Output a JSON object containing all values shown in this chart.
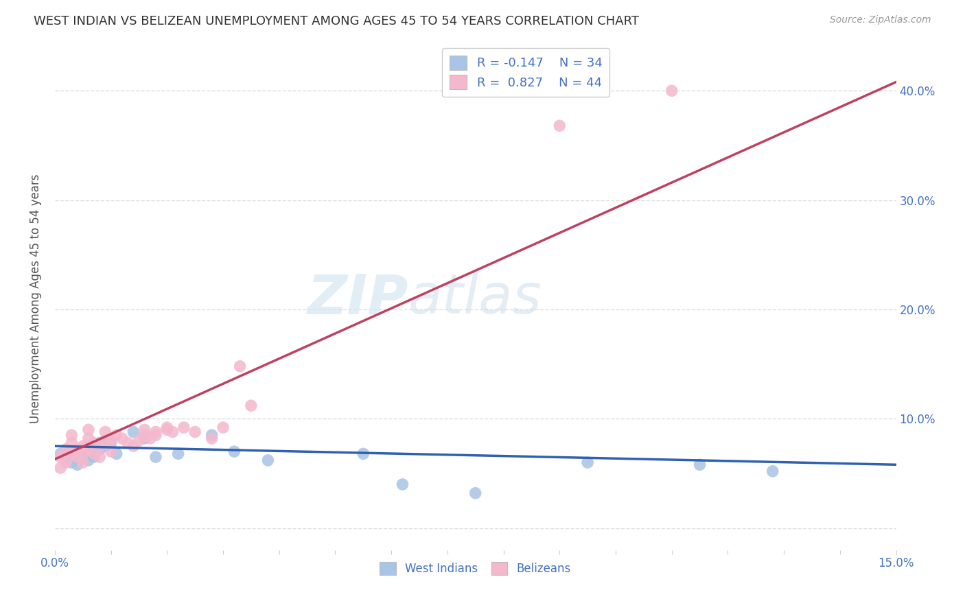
{
  "title": "WEST INDIAN VS BELIZEAN UNEMPLOYMENT AMONG AGES 45 TO 54 YEARS CORRELATION CHART",
  "source": "Source: ZipAtlas.com",
  "ylabel": "Unemployment Among Ages 45 to 54 years",
  "xmin": 0.0,
  "xmax": 0.15,
  "ymin": -0.02,
  "ymax": 0.44,
  "ytick_values": [
    0.0,
    0.1,
    0.2,
    0.3,
    0.4
  ],
  "grid_color": "#dddddd",
  "watermark_zip": "ZIP",
  "watermark_atlas": "atlas",
  "west_indian_color": "#a8c4e6",
  "belizean_color": "#f4b8cc",
  "west_indian_line_color": "#3060b0",
  "belizean_line_color": "#c04060",
  "west_indian_R": -0.147,
  "west_indian_N": 34,
  "belizean_R": 0.827,
  "belizean_N": 44,
  "west_indians_x": [
    0.001,
    0.002,
    0.002,
    0.003,
    0.003,
    0.004,
    0.004,
    0.005,
    0.005,
    0.005,
    0.006,
    0.006,
    0.007,
    0.007,
    0.007,
    0.008,
    0.008,
    0.009,
    0.009,
    0.01,
    0.011,
    0.014,
    0.016,
    0.018,
    0.022,
    0.028,
    0.032,
    0.038,
    0.055,
    0.062,
    0.075,
    0.095,
    0.115,
    0.128
  ],
  "west_indians_y": [
    0.068,
    0.065,
    0.072,
    0.06,
    0.07,
    0.068,
    0.058,
    0.07,
    0.065,
    0.072,
    0.068,
    0.062,
    0.075,
    0.07,
    0.065,
    0.078,
    0.072,
    0.08,
    0.075,
    0.078,
    0.068,
    0.088,
    0.082,
    0.065,
    0.068,
    0.085,
    0.07,
    0.062,
    0.068,
    0.04,
    0.032,
    0.06,
    0.058,
    0.052
  ],
  "belizeans_x": [
    0.001,
    0.001,
    0.002,
    0.002,
    0.003,
    0.003,
    0.003,
    0.004,
    0.004,
    0.005,
    0.005,
    0.005,
    0.006,
    0.006,
    0.006,
    0.007,
    0.007,
    0.008,
    0.008,
    0.009,
    0.009,
    0.01,
    0.01,
    0.011,
    0.012,
    0.013,
    0.014,
    0.015,
    0.016,
    0.017,
    0.018,
    0.02,
    0.021,
    0.023,
    0.028,
    0.03,
    0.033,
    0.035,
    0.016,
    0.018,
    0.02,
    0.025,
    0.09,
    0.11
  ],
  "belizeans_y": [
    0.055,
    0.065,
    0.06,
    0.072,
    0.068,
    0.078,
    0.085,
    0.065,
    0.072,
    0.06,
    0.068,
    0.075,
    0.072,
    0.082,
    0.09,
    0.068,
    0.078,
    0.065,
    0.075,
    0.078,
    0.088,
    0.07,
    0.08,
    0.085,
    0.082,
    0.078,
    0.075,
    0.08,
    0.085,
    0.082,
    0.088,
    0.09,
    0.088,
    0.092,
    0.082,
    0.092,
    0.148,
    0.112,
    0.09,
    0.085,
    0.092,
    0.088,
    0.368,
    0.4
  ]
}
